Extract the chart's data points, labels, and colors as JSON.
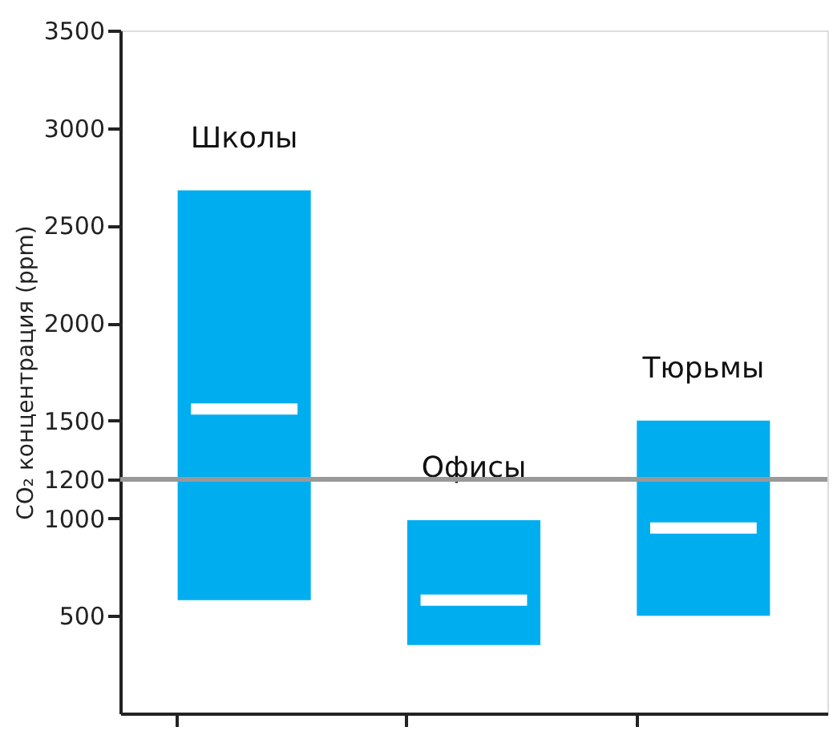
{
  "chart_data": {
    "type": "box",
    "ylabel": "CO₂ концентрация (ppm)",
    "categories": [
      "Школы",
      "Офисы",
      "Тюрьмы"
    ],
    "boxes": [
      {
        "low": 580,
        "q1": 580,
        "median": 1560,
        "q3": 2680,
        "high": 2680
      },
      {
        "low": 350,
        "q1": 350,
        "median": 580,
        "q3": 990,
        "high": 990
      },
      {
        "low": 500,
        "q1": 500,
        "median": 950,
        "q3": 1500,
        "high": 1500
      }
    ],
    "colors": [
      "#00aeef",
      "#00aeef",
      "#00aeef"
    ],
    "ylim": [
      0,
      3500
    ],
    "yticks": [
      500,
      1000,
      1200,
      1500,
      2000,
      2500,
      3000,
      3500
    ],
    "ref_lines": [
      {
        "axis": "y",
        "value": 1200,
        "color": "#999999"
      }
    ],
    "tick_labels": "y",
    "grid": false
  }
}
